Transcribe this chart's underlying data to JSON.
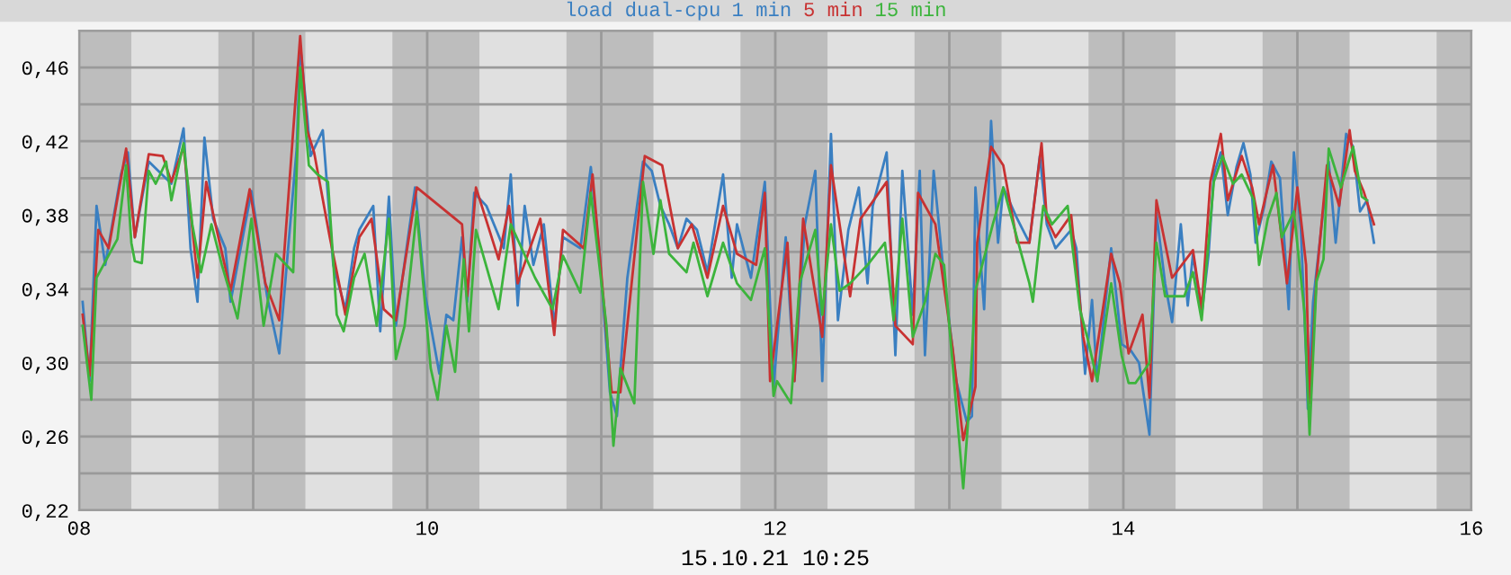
{
  "chart_data": {
    "type": "line",
    "title": "load dual-cpu",
    "xlabel": "15.10.21 10:25",
    "legend": "top",
    "grid": true,
    "marker": "none",
    "line_style": "solid",
    "xlim": [
      8,
      16
    ],
    "ylim": [
      0.22,
      0.48
    ],
    "xticks": [
      {
        "value": 8,
        "label": "08"
      },
      {
        "value": 9,
        "label": null
      },
      {
        "value": 10,
        "label": "10"
      },
      {
        "value": 11,
        "label": null
      },
      {
        "value": 12,
        "label": "12"
      },
      {
        "value": 13,
        "label": null
      },
      {
        "value": 14,
        "label": "14"
      },
      {
        "value": 15,
        "label": null
      },
      {
        "value": 16,
        "label": "16"
      }
    ],
    "yticks": [
      {
        "value": 0.22,
        "label": "0,22"
      },
      {
        "value": 0.24,
        "label": null
      },
      {
        "value": 0.26,
        "label": "0,26"
      },
      {
        "value": 0.28,
        "label": null
      },
      {
        "value": 0.3,
        "label": "0,30"
      },
      {
        "value": 0.32,
        "label": null
      },
      {
        "value": 0.34,
        "label": "0,34"
      },
      {
        "value": 0.36,
        "label": null
      },
      {
        "value": 0.38,
        "label": "0,38"
      },
      {
        "value": 0.4,
        "label": null
      },
      {
        "value": 0.42,
        "label": "0,42"
      },
      {
        "value": 0.44,
        "label": null
      },
      {
        "value": 0.46,
        "label": "0,46"
      },
      {
        "value": 0.48,
        "label": null
      }
    ],
    "bands": [
      {
        "axis": "x",
        "from": 8.0,
        "to": 8.3,
        "color": "#bdbdbd"
      },
      {
        "axis": "x",
        "from": 8.8,
        "to": 9.3,
        "color": "#bdbdbd"
      },
      {
        "axis": "x",
        "from": 9.8,
        "to": 10.3,
        "color": "#bdbdbd"
      },
      {
        "axis": "x",
        "from": 10.8,
        "to": 11.3,
        "color": "#bdbdbd"
      },
      {
        "axis": "x",
        "from": 11.8,
        "to": 12.3,
        "color": "#bdbdbd"
      },
      {
        "axis": "x",
        "from": 12.8,
        "to": 13.3,
        "color": "#bdbdbd"
      },
      {
        "axis": "x",
        "from": 13.8,
        "to": 14.3,
        "color": "#bdbdbd"
      },
      {
        "axis": "x",
        "from": 14.8,
        "to": 15.3,
        "color": "#bdbdbd"
      },
      {
        "axis": "x",
        "from": 15.8,
        "to": 16.0,
        "color": "#bdbdbd"
      }
    ],
    "series": [
      {
        "name": "1 min",
        "color": "#3a7fc1",
        "x": [
          8.02,
          8.06,
          8.1,
          8.15,
          8.24,
          8.28,
          8.32,
          8.4,
          8.53,
          8.6,
          8.64,
          8.68,
          8.72,
          8.77,
          8.84,
          8.87,
          8.99,
          9.08,
          9.15,
          9.2,
          9.25,
          9.27,
          9.31,
          9.33,
          9.4,
          9.46,
          9.53,
          9.58,
          9.61,
          9.69,
          9.73,
          9.78,
          9.82,
          9.89,
          9.93,
          9.99,
          10.07,
          10.11,
          10.15,
          10.2,
          10.23,
          10.27,
          10.34,
          10.44,
          10.48,
          10.52,
          10.56,
          10.61,
          10.67,
          10.73,
          10.78,
          10.88,
          10.94,
          10.99,
          11.05,
          11.09,
          11.15,
          11.24,
          11.29,
          11.34,
          11.39,
          11.44,
          11.49,
          11.55,
          11.61,
          11.7,
          11.75,
          11.78,
          11.86,
          11.94,
          11.99,
          12.06,
          12.11,
          12.17,
          12.23,
          12.27,
          12.32,
          12.36,
          12.42,
          12.48,
          12.53,
          12.56,
          12.64,
          12.69,
          12.73,
          12.79,
          12.83,
          12.86,
          12.91,
          12.97,
          13.04,
          13.1,
          13.13,
          13.15,
          13.2,
          13.24,
          13.28,
          13.31,
          13.39,
          13.46,
          13.52,
          13.56,
          13.61,
          13.7,
          13.73,
          13.78,
          13.82,
          13.85,
          13.93,
          13.99,
          14.04,
          14.09,
          14.15,
          14.19,
          14.24,
          14.28,
          14.33,
          14.37,
          14.4,
          14.45,
          14.49,
          14.52,
          14.56,
          14.6,
          14.65,
          14.69,
          14.73,
          14.76,
          14.81,
          14.85,
          14.9,
          14.93,
          14.95,
          14.98,
          15.02,
          15.05,
          15.06,
          15.09,
          15.14,
          15.18,
          15.22,
          15.28,
          15.32,
          15.36,
          15.4,
          15.44
        ],
        "values": [
          0.333,
          0.29,
          0.385,
          0.353,
          0.402,
          0.414,
          0.368,
          0.409,
          0.397,
          0.427,
          0.362,
          0.333,
          0.422,
          0.378,
          0.362,
          0.333,
          0.393,
          0.336,
          0.305,
          0.361,
          0.416,
          0.472,
          0.434,
          0.412,
          0.426,
          0.353,
          0.329,
          0.362,
          0.372,
          0.385,
          0.317,
          0.39,
          0.32,
          0.368,
          0.395,
          0.336,
          0.294,
          0.326,
          0.323,
          0.368,
          0.333,
          0.392,
          0.385,
          0.362,
          0.402,
          0.331,
          0.385,
          0.353,
          0.375,
          0.32,
          0.368,
          0.362,
          0.406,
          0.359,
          0.284,
          0.271,
          0.346,
          0.409,
          0.404,
          0.385,
          0.375,
          0.362,
          0.378,
          0.372,
          0.349,
          0.402,
          0.346,
          0.375,
          0.346,
          0.398,
          0.287,
          0.368,
          0.29,
          0.375,
          0.404,
          0.29,
          0.424,
          0.323,
          0.372,
          0.395,
          0.343,
          0.385,
          0.414,
          0.304,
          0.404,
          0.326,
          0.404,
          0.304,
          0.404,
          0.346,
          0.29,
          0.268,
          0.271,
          0.395,
          0.329,
          0.431,
          0.365,
          0.395,
          0.378,
          0.365,
          0.412,
          0.375,
          0.362,
          0.372,
          0.362,
          0.294,
          0.334,
          0.29,
          0.362,
          0.31,
          0.307,
          0.3,
          0.261,
          0.381,
          0.343,
          0.322,
          0.375,
          0.331,
          0.359,
          0.326,
          0.359,
          0.402,
          0.414,
          0.38,
          0.406,
          0.419,
          0.402,
          0.365,
          0.385,
          0.409,
          0.4,
          0.359,
          0.329,
          0.414,
          0.372,
          0.304,
          0.275,
          0.333,
          0.375,
          0.409,
          0.365,
          0.424,
          0.417,
          0.382,
          0.388,
          0.365
        ]
      },
      {
        "name": "5 min",
        "color": "#c83232",
        "x": [
          8.02,
          8.06,
          8.11,
          8.17,
          8.27,
          8.32,
          8.4,
          8.48,
          8.53,
          8.6,
          8.68,
          8.73,
          8.79,
          8.87,
          8.98,
          9.07,
          9.15,
          9.27,
          9.31,
          9.35,
          9.44,
          9.53,
          9.61,
          9.68,
          9.75,
          9.82,
          9.94,
          10.2,
          10.23,
          10.28,
          10.41,
          10.47,
          10.52,
          10.65,
          10.73,
          10.78,
          10.9,
          10.95,
          11.06,
          11.11,
          11.25,
          11.35,
          11.44,
          11.52,
          11.61,
          11.7,
          11.78,
          11.89,
          11.94,
          11.97,
          12.07,
          12.11,
          12.16,
          12.27,
          12.32,
          12.43,
          12.49,
          12.64,
          12.69,
          12.79,
          12.82,
          12.92,
          13.02,
          13.08,
          13.15,
          13.16,
          13.24,
          13.31,
          13.39,
          13.46,
          13.53,
          13.56,
          13.61,
          13.7,
          13.77,
          13.82,
          13.93,
          13.98,
          14.03,
          14.11,
          14.15,
          14.19,
          14.28,
          14.4,
          14.45,
          14.5,
          14.56,
          14.6,
          14.68,
          14.74,
          14.78,
          14.86,
          14.94,
          15.0,
          15.05,
          15.07,
          15.11,
          15.17,
          15.24,
          15.3,
          15.33,
          15.38,
          15.44
        ],
        "values": [
          0.326,
          0.293,
          0.372,
          0.362,
          0.416,
          0.368,
          0.413,
          0.412,
          0.398,
          0.417,
          0.346,
          0.398,
          0.372,
          0.339,
          0.394,
          0.343,
          0.323,
          0.477,
          0.426,
          0.414,
          0.368,
          0.326,
          0.368,
          0.378,
          0.329,
          0.323,
          0.395,
          0.375,
          0.336,
          0.395,
          0.356,
          0.385,
          0.343,
          0.378,
          0.315,
          0.372,
          0.362,
          0.402,
          0.284,
          0.284,
          0.412,
          0.407,
          0.362,
          0.375,
          0.346,
          0.385,
          0.359,
          0.353,
          0.392,
          0.29,
          0.365,
          0.29,
          0.378,
          0.314,
          0.407,
          0.336,
          0.378,
          0.398,
          0.32,
          0.31,
          0.392,
          0.375,
          0.307,
          0.258,
          0.287,
          0.365,
          0.417,
          0.407,
          0.365,
          0.365,
          0.419,
          0.378,
          0.368,
          0.38,
          0.314,
          0.29,
          0.359,
          0.343,
          0.305,
          0.326,
          0.281,
          0.388,
          0.346,
          0.361,
          0.329,
          0.398,
          0.424,
          0.388,
          0.412,
          0.395,
          0.375,
          0.407,
          0.343,
          0.395,
          0.353,
          0.278,
          0.346,
          0.407,
          0.385,
          0.426,
          0.404,
          0.393,
          0.375
        ]
      },
      {
        "name": "15 min",
        "color": "#3cb43c",
        "x": [
          8.02,
          8.07,
          8.1,
          8.22,
          8.27,
          8.3,
          8.32,
          8.36,
          8.4,
          8.44,
          8.5,
          8.53,
          8.6,
          8.65,
          8.7,
          8.76,
          8.82,
          8.91,
          8.99,
          9.06,
          9.13,
          9.23,
          9.27,
          9.32,
          9.37,
          9.43,
          9.48,
          9.52,
          9.58,
          9.64,
          9.71,
          9.78,
          9.82,
          9.87,
          9.94,
          10.02,
          10.06,
          10.11,
          10.16,
          10.21,
          10.24,
          10.28,
          10.41,
          10.48,
          10.62,
          10.72,
          10.78,
          10.88,
          10.94,
          11.03,
          11.07,
          11.11,
          11.19,
          11.24,
          11.3,
          11.34,
          11.39,
          11.49,
          11.53,
          11.61,
          11.7,
          11.78,
          11.86,
          11.94,
          11.99,
          12.01,
          12.09,
          12.14,
          12.23,
          12.27,
          12.32,
          12.37,
          12.43,
          12.53,
          12.63,
          12.68,
          12.73,
          12.79,
          12.86,
          12.92,
          12.97,
          13.08,
          13.11,
          13.15,
          13.25,
          13.31,
          13.46,
          13.48,
          13.54,
          13.59,
          13.68,
          13.75,
          13.8,
          13.85,
          13.93,
          13.99,
          14.03,
          14.07,
          14.15,
          14.19,
          14.24,
          14.35,
          14.4,
          14.45,
          14.52,
          14.57,
          14.63,
          14.68,
          14.75,
          14.78,
          14.83,
          14.88,
          14.91,
          14.98,
          15.04,
          15.07,
          15.11,
          15.15,
          15.18,
          15.25,
          15.32,
          15.37,
          15.4
        ],
        "values": [
          0.32,
          0.28,
          0.346,
          0.367,
          0.407,
          0.365,
          0.355,
          0.354,
          0.404,
          0.397,
          0.409,
          0.388,
          0.419,
          0.375,
          0.349,
          0.375,
          0.353,
          0.324,
          0.378,
          0.32,
          0.359,
          0.349,
          0.46,
          0.407,
          0.402,
          0.398,
          0.326,
          0.317,
          0.346,
          0.359,
          0.32,
          0.378,
          0.302,
          0.32,
          0.382,
          0.297,
          0.28,
          0.32,
          0.295,
          0.356,
          0.317,
          0.372,
          0.329,
          0.375,
          0.346,
          0.329,
          0.358,
          0.338,
          0.392,
          0.32,
          0.255,
          0.297,
          0.278,
          0.398,
          0.359,
          0.388,
          0.359,
          0.349,
          0.365,
          0.336,
          0.365,
          0.343,
          0.334,
          0.362,
          0.282,
          0.29,
          0.278,
          0.343,
          0.372,
          0.326,
          0.375,
          0.339,
          0.343,
          0.353,
          0.365,
          0.323,
          0.378,
          0.314,
          0.333,
          0.359,
          0.353,
          0.232,
          0.271,
          0.339,
          0.375,
          0.395,
          0.343,
          0.333,
          0.385,
          0.375,
          0.385,
          0.329,
          0.311,
          0.29,
          0.343,
          0.304,
          0.289,
          0.289,
          0.3,
          0.365,
          0.336,
          0.336,
          0.349,
          0.323,
          0.398,
          0.412,
          0.397,
          0.402,
          0.388,
          0.353,
          0.378,
          0.392,
          0.368,
          0.382,
          0.328,
          0.261,
          0.344,
          0.356,
          0.416,
          0.395,
          0.417,
          0.39,
          0.388
        ]
      }
    ]
  }
}
